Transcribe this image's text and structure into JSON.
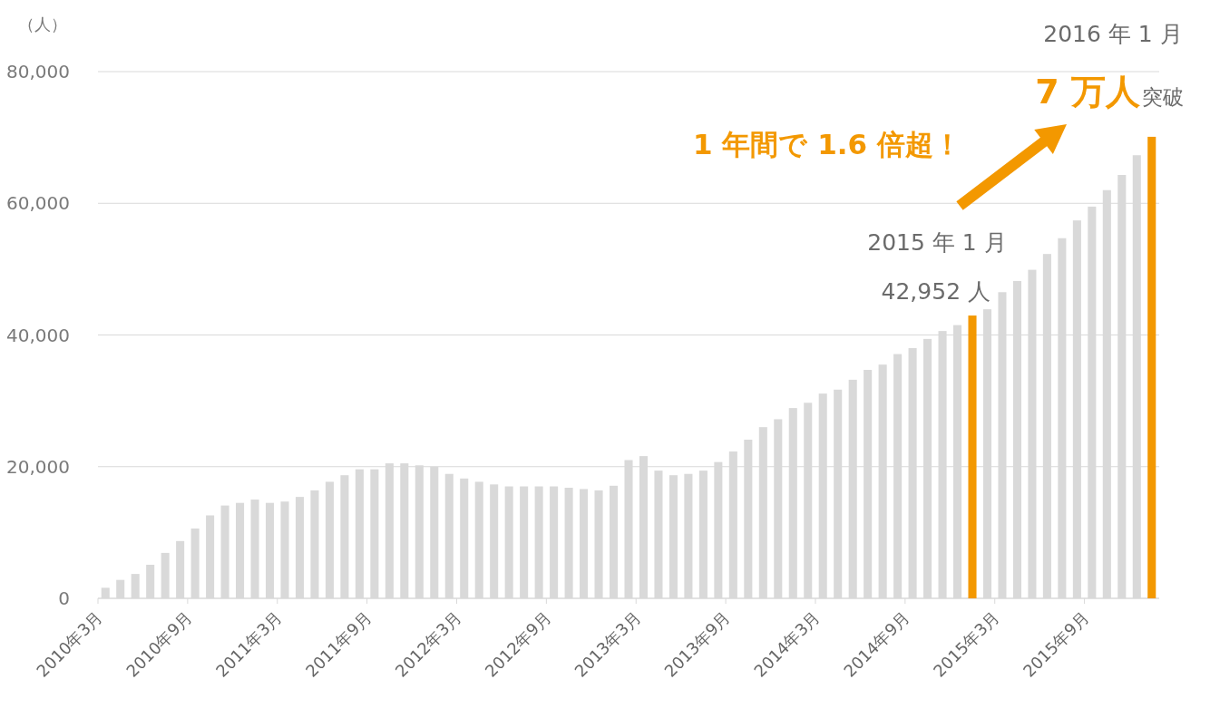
{
  "chart_data": {
    "type": "bar",
    "ylabel": "（人）",
    "categories": [
      "2010年3月",
      null,
      null,
      null,
      null,
      null,
      "2010年9月",
      null,
      null,
      null,
      null,
      null,
      "2011年3月",
      null,
      null,
      null,
      null,
      null,
      "2011年9月",
      null,
      null,
      null,
      null,
      null,
      "2012年3月",
      null,
      null,
      null,
      null,
      null,
      "2012年9月",
      null,
      null,
      null,
      null,
      null,
      "2013年3月",
      null,
      null,
      null,
      null,
      null,
      "2013年9月",
      null,
      null,
      null,
      null,
      null,
      "2014年3月",
      null,
      null,
      null,
      null,
      null,
      "2014年9月",
      null,
      null,
      null,
      null,
      null,
      "2015年3月",
      null,
      null,
      null,
      null,
      null,
      "2015年9月",
      null,
      null,
      null,
      null
    ],
    "values": [
      1600,
      2800,
      3700,
      5100,
      6900,
      8700,
      10600,
      12600,
      14100,
      14500,
      15000,
      14500,
      14700,
      15400,
      16400,
      17700,
      18700,
      19600,
      19600,
      20500,
      20500,
      20200,
      20000,
      18900,
      18200,
      17700,
      17300,
      17000,
      17000,
      17000,
      17000,
      16800,
      16600,
      16400,
      17100,
      21000,
      21600,
      19400,
      18700,
      18900,
      19400,
      20700,
      22300,
      24100,
      26000,
      27200,
      28900,
      29700,
      31100,
      31700,
      33200,
      34700,
      35500,
      37100,
      38000,
      39400,
      40600,
      41500,
      42952,
      43900,
      46500,
      48200,
      49900,
      52300,
      54700,
      57400,
      59500,
      62000,
      64300,
      67300,
      70100
    ],
    "colors": [
      "#d9d9d9",
      "#d9d9d9",
      "#d9d9d9",
      "#d9d9d9",
      "#d9d9d9",
      "#d9d9d9",
      "#d9d9d9",
      "#d9d9d9",
      "#d9d9d9",
      "#d9d9d9",
      "#d9d9d9",
      "#d9d9d9",
      "#d9d9d9",
      "#d9d9d9",
      "#d9d9d9",
      "#d9d9d9",
      "#d9d9d9",
      "#d9d9d9",
      "#d9d9d9",
      "#d9d9d9",
      "#d9d9d9",
      "#d9d9d9",
      "#d9d9d9",
      "#d9d9d9",
      "#d9d9d9",
      "#d9d9d9",
      "#d9d9d9",
      "#d9d9d9",
      "#d9d9d9",
      "#d9d9d9",
      "#d9d9d9",
      "#d9d9d9",
      "#d9d9d9",
      "#d9d9d9",
      "#d9d9d9",
      "#d9d9d9",
      "#d9d9d9",
      "#d9d9d9",
      "#d9d9d9",
      "#d9d9d9",
      "#d9d9d9",
      "#d9d9d9",
      "#d9d9d9",
      "#d9d9d9",
      "#d9d9d9",
      "#d9d9d9",
      "#d9d9d9",
      "#d9d9d9",
      "#d9d9d9",
      "#d9d9d9",
      "#d9d9d9",
      "#d9d9d9",
      "#d9d9d9",
      "#d9d9d9",
      "#d9d9d9",
      "#d9d9d9",
      "#d9d9d9",
      "#d9d9d9",
      "#f39800",
      "#d9d9d9",
      "#d9d9d9",
      "#d9d9d9",
      "#d9d9d9",
      "#d9d9d9",
      "#d9d9d9",
      "#d9d9d9",
      "#d9d9d9",
      "#d9d9d9",
      "#d9d9d9",
      "#d9d9d9",
      "#f39800"
    ],
    "ylim": [
      0,
      80000
    ],
    "yticks": [
      {
        "value": 0,
        "label": "0"
      },
      {
        "value": 20000,
        "label": "20,000"
      },
      {
        "value": 40000,
        "label": "40,000"
      },
      {
        "value": 60000,
        "label": "60,000"
      },
      {
        "value": 80000,
        "label": "80,000"
      }
    ],
    "grid": "y",
    "annotations": [
      "2015 年 1 月",
      "42,952 人",
      "2016 年 1 月",
      "7 万人",
      "突破",
      "1 年間で 1.6 倍超！"
    ]
  }
}
